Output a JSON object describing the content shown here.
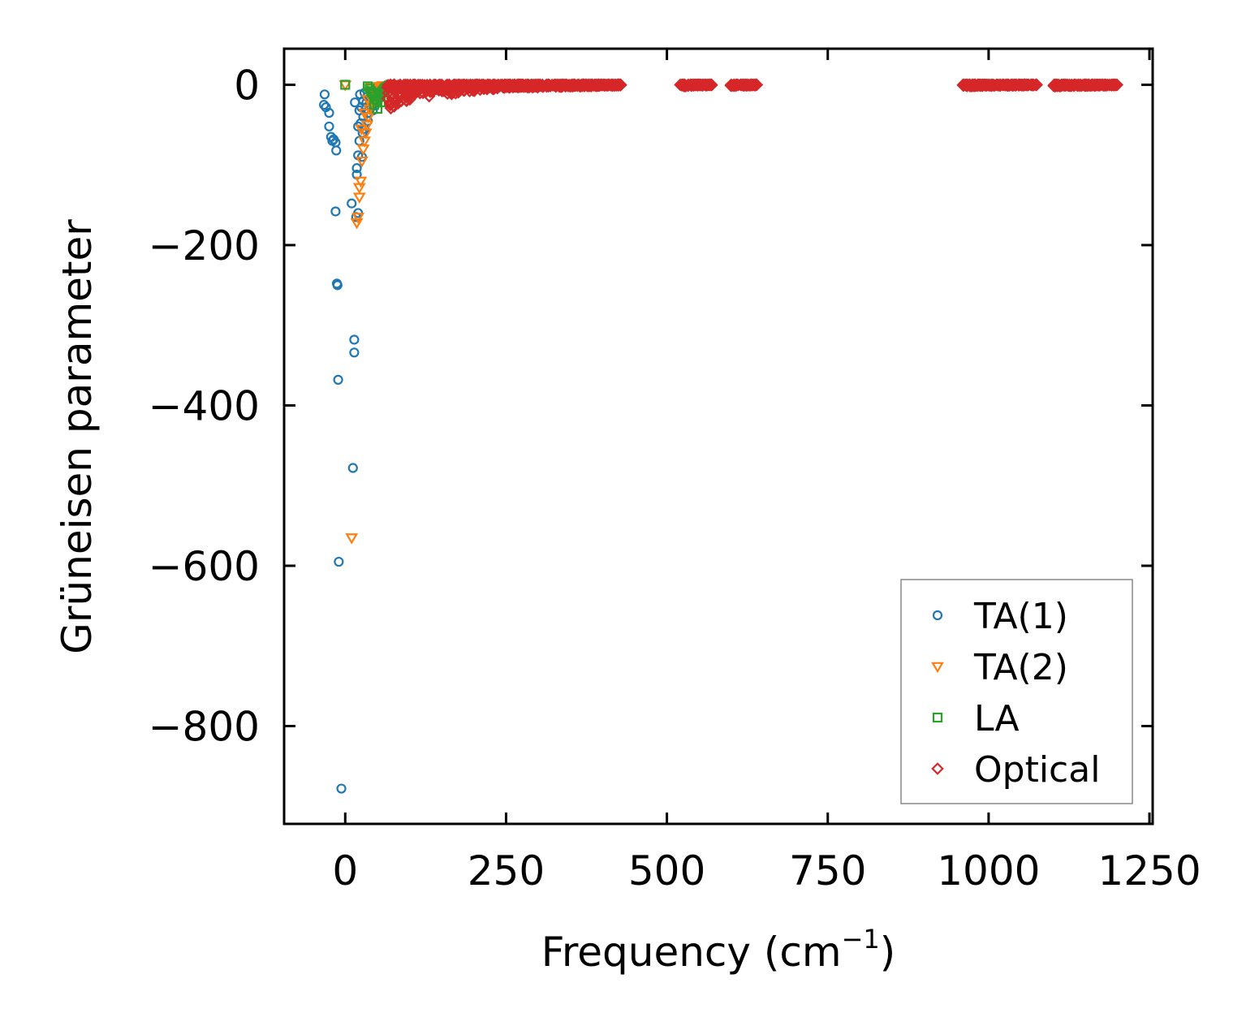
{
  "chart_data": {
    "type": "scatter",
    "xlabel": "Frequency (cm",
    "xlabel_sup": "−1",
    "xlabel_close": ")",
    "ylabel": "Grüneisen parameter",
    "xlim": [
      -95,
      1255
    ],
    "ylim": [
      -922,
      45
    ],
    "xticks": [
      {
        "value": 0,
        "label": "0"
      },
      {
        "value": 250,
        "label": "250"
      },
      {
        "value": 500,
        "label": "500"
      },
      {
        "value": 750,
        "label": "750"
      },
      {
        "value": 1000,
        "label": "1000"
      },
      {
        "value": 1250,
        "label": "1250"
      }
    ],
    "yticks": [
      {
        "value": 0,
        "label": "0"
      },
      {
        "value": -200,
        "label": "−200"
      },
      {
        "value": -400,
        "label": "−400"
      },
      {
        "value": -600,
        "label": "−600"
      },
      {
        "value": -800,
        "label": "−800"
      }
    ],
    "grid": false,
    "legend_position": "bottom-right",
    "series": [
      {
        "name": "TA(1)",
        "marker": "circle",
        "color": "#1f77b4",
        "points": [
          [
            -32,
            -12
          ],
          [
            -33,
            -25
          ],
          [
            -30,
            -28
          ],
          [
            -25,
            -35
          ],
          [
            -25,
            -52
          ],
          [
            -22,
            -65
          ],
          [
            -20,
            -70
          ],
          [
            -18,
            -68
          ],
          [
            -15,
            -72
          ],
          [
            -14,
            -82
          ],
          [
            -15,
            -158
          ],
          [
            -13,
            -248
          ],
          [
            -12,
            -250
          ],
          [
            -11,
            -368
          ],
          [
            -10,
            -595
          ],
          [
            -6,
            -878
          ],
          [
            10,
            -148
          ],
          [
            12,
            -478
          ],
          [
            14,
            -318
          ],
          [
            14,
            -334
          ],
          [
            15,
            -22
          ],
          [
            17,
            -165
          ],
          [
            18,
            -112
          ],
          [
            18,
            -104
          ],
          [
            20,
            -160
          ],
          [
            20,
            -88
          ],
          [
            20,
            -52
          ],
          [
            22,
            -32
          ],
          [
            22,
            -70
          ],
          [
            23,
            -12
          ],
          [
            24,
            -48
          ],
          [
            25,
            -28
          ],
          [
            26,
            -90
          ],
          [
            27,
            -60
          ],
          [
            28,
            -40
          ],
          [
            28,
            -20
          ],
          [
            30,
            -10
          ],
          [
            30,
            -55
          ],
          [
            32,
            -30
          ],
          [
            33,
            -22
          ],
          [
            34,
            -15
          ],
          [
            35,
            -45
          ],
          [
            36,
            -35
          ],
          [
            37,
            -25
          ],
          [
            38,
            -18
          ],
          [
            40,
            -28
          ],
          [
            40,
            -12
          ],
          [
            42,
            -22
          ],
          [
            43,
            -32
          ],
          [
            44,
            -15
          ],
          [
            45,
            -20
          ],
          [
            46,
            -26
          ],
          [
            48,
            -18
          ]
        ]
      },
      {
        "name": "TA(2)",
        "marker": "triangle",
        "color": "#ff7f0e",
        "points": [
          [
            0,
            0
          ],
          [
            10,
            -565
          ],
          [
            18,
            -172
          ],
          [
            20,
            -165
          ],
          [
            22,
            -140
          ],
          [
            22,
            -128
          ],
          [
            24,
            -120
          ],
          [
            26,
            -95
          ],
          [
            28,
            -80
          ],
          [
            30,
            -70
          ],
          [
            32,
            -60
          ],
          [
            34,
            -50
          ],
          [
            36,
            -40
          ],
          [
            38,
            -30
          ],
          [
            40,
            -25
          ],
          [
            42,
            -20
          ],
          [
            44,
            -15
          ],
          [
            46,
            -10
          ],
          [
            48,
            -8
          ],
          [
            50,
            -5
          ],
          [
            52,
            -4
          ],
          [
            54,
            -3
          ],
          [
            56,
            -2
          ],
          [
            58,
            -1
          ],
          [
            40,
            -2
          ],
          [
            45,
            -12
          ],
          [
            35,
            -18
          ],
          [
            30,
            -35
          ],
          [
            25,
            -55
          ],
          [
            55,
            -18
          ],
          [
            60,
            -10
          ]
        ]
      },
      {
        "name": "LA",
        "marker": "square",
        "color": "#2ca02c",
        "points": [
          [
            0,
            0
          ],
          [
            35,
            -2
          ],
          [
            38,
            -5
          ],
          [
            40,
            -8
          ],
          [
            42,
            -10
          ],
          [
            44,
            -12
          ],
          [
            46,
            -15
          ],
          [
            48,
            -18
          ],
          [
            50,
            -20
          ],
          [
            52,
            -14
          ],
          [
            54,
            -12
          ],
          [
            56,
            -10
          ],
          [
            58,
            -8
          ],
          [
            60,
            -6
          ],
          [
            62,
            -4
          ],
          [
            64,
            -3
          ],
          [
            66,
            -2
          ],
          [
            68,
            -1
          ],
          [
            70,
            0
          ],
          [
            45,
            -25
          ],
          [
            50,
            -30
          ],
          [
            55,
            -22
          ],
          [
            60,
            -15
          ],
          [
            65,
            -5
          ],
          [
            72,
            -2
          ]
        ]
      },
      {
        "name": "Optical",
        "marker": "diamond",
        "color": "#d62728",
        "clusters": [
          {
            "x_range": [
              65,
              130
            ],
            "y_range": [
              -32,
              0
            ]
          },
          {
            "x_range": [
              130,
              250
            ],
            "y_range": [
              -15,
              0
            ]
          },
          {
            "x_range": [
              250,
              430
            ],
            "y_range": [
              -4,
              0
            ]
          },
          {
            "x_range": [
              520,
              570
            ],
            "y_range": [
              -2,
              0
            ]
          },
          {
            "x_range": [
              598,
              640
            ],
            "y_range": [
              -2,
              0
            ]
          },
          {
            "x_range": [
              960,
              1075
            ],
            "y_range": [
              -2,
              0
            ]
          },
          {
            "x_range": [
              1100,
              1200
            ],
            "y_range": [
              -2,
              0
            ]
          }
        ]
      }
    ]
  }
}
